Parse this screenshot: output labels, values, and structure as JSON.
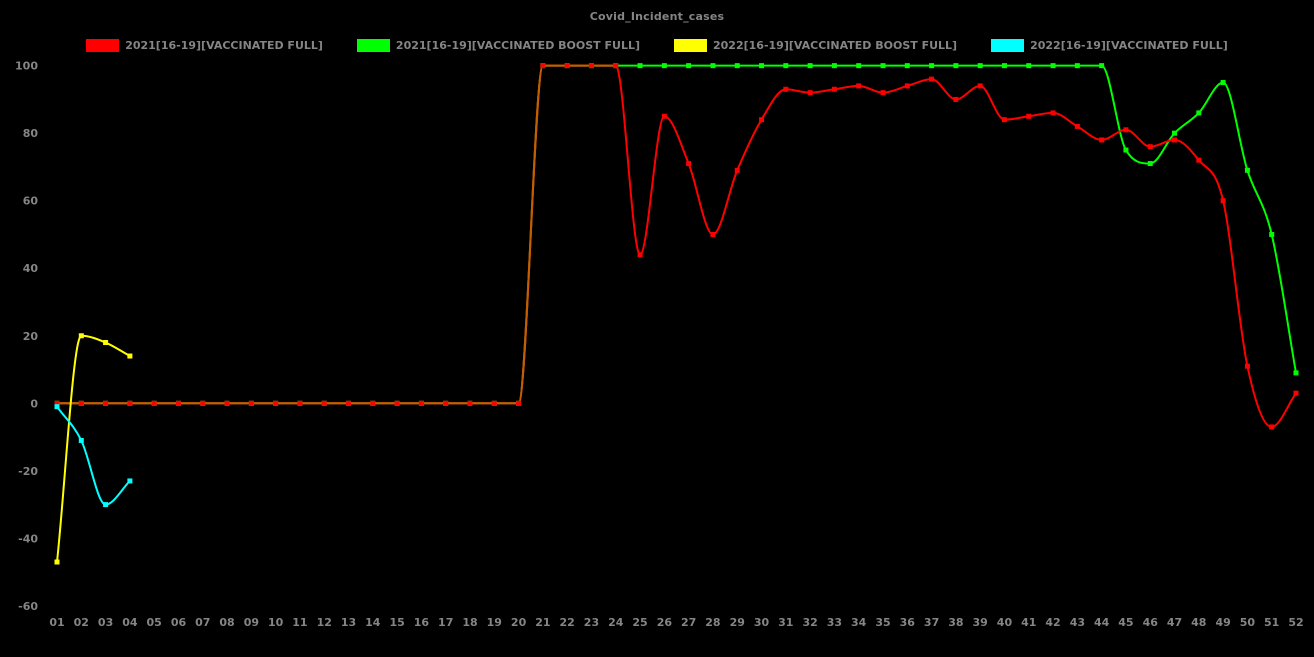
{
  "chart_data": {
    "type": "line",
    "title": "Covid_Incident_cases",
    "xlabel": "",
    "ylabel": "",
    "ylim": [
      -60,
      100
    ],
    "yticks": [
      100,
      80,
      60,
      40,
      20,
      0,
      -20,
      -40,
      -60
    ],
    "categories": [
      "01",
      "02",
      "03",
      "04",
      "05",
      "06",
      "07",
      "08",
      "09",
      "10",
      "11",
      "12",
      "13",
      "14",
      "15",
      "16",
      "17",
      "18",
      "19",
      "20",
      "21",
      "22",
      "23",
      "24",
      "25",
      "26",
      "27",
      "28",
      "29",
      "30",
      "31",
      "32",
      "33",
      "34",
      "35",
      "36",
      "37",
      "38",
      "39",
      "40",
      "41",
      "42",
      "43",
      "44",
      "45",
      "46",
      "47",
      "48",
      "49",
      "50",
      "51",
      "52"
    ],
    "grid": false,
    "legend_position": "top",
    "background_color": "#000000",
    "text_color": "#858585",
    "overlap_color": "#c35f00",
    "series": [
      {
        "name": "2021[16-19][VACCINATED FULL]",
        "color": "#ff0000",
        "start_week": 1,
        "values": [
          0,
          0,
          0,
          0,
          0,
          0,
          0,
          0,
          0,
          0,
          0,
          0,
          0,
          0,
          0,
          0,
          0,
          0,
          0,
          0,
          100,
          100,
          100,
          100,
          44,
          85,
          71,
          50,
          69,
          84,
          93,
          92,
          93,
          94,
          92,
          94,
          96,
          90,
          94,
          84,
          85,
          86,
          82,
          78,
          81,
          76,
          78,
          72,
          60,
          11,
          -7,
          3
        ]
      },
      {
        "name": "2021[16-19][VACCINATED BOOST FULL]",
        "color": "#00ff00",
        "start_week": 1,
        "values": [
          0,
          0,
          0,
          0,
          0,
          0,
          0,
          0,
          0,
          0,
          0,
          0,
          0,
          0,
          0,
          0,
          0,
          0,
          0,
          0,
          100,
          100,
          100,
          100,
          100,
          100,
          100,
          100,
          100,
          100,
          100,
          100,
          100,
          100,
          100,
          100,
          100,
          100,
          100,
          100,
          100,
          100,
          100,
          100,
          75,
          71,
          80,
          86,
          95,
          69,
          50,
          9
        ]
      },
      {
        "name": "2022[16-19][VACCINATED BOOST FULL]",
        "color": "#ffff00",
        "start_week": 1,
        "values": [
          -47,
          20,
          18,
          14
        ]
      },
      {
        "name": "2022[16-19][VACCINATED FULL]",
        "color": "#00ffff",
        "start_week": 1,
        "values": [
          -1,
          -11,
          -30,
          -23
        ]
      }
    ]
  }
}
